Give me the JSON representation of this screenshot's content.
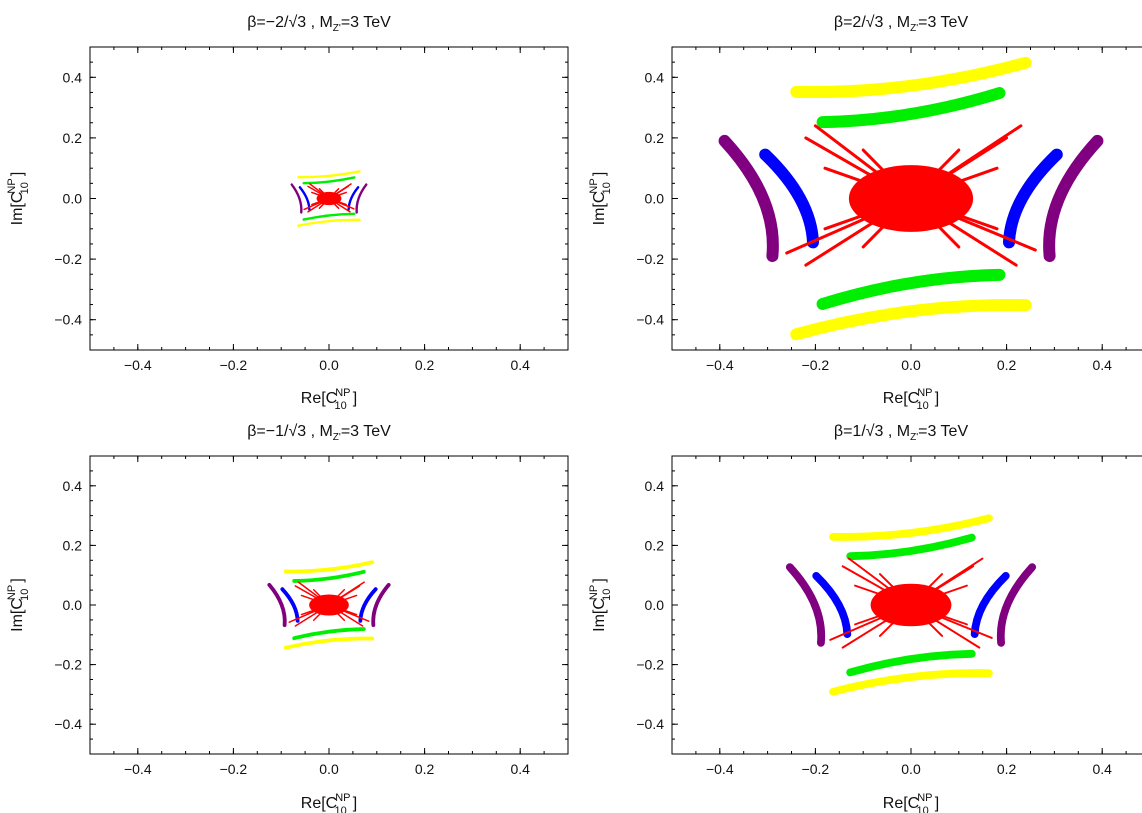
{
  "chart_data": [
    {
      "type": "scatter",
      "title": "β=−2/√3 ,  M",
      "title_sub": "Z'",
      "title_tail": "=3 TeV",
      "xlabel": "Re[C",
      "ylabel": "Im[C",
      "label_sup": "NP",
      "label_sub": "10",
      "label_close": "]",
      "xlim": [
        -0.5,
        0.5
      ],
      "ylim": [
        -0.5,
        0.5
      ],
      "x_ticks": [
        "−0.4",
        "−0.2",
        "0.0",
        "0.2",
        "0.4"
      ],
      "x_tick_values": [
        -0.4,
        -0.2,
        0.0,
        0.2,
        0.4
      ],
      "y_ticks": [
        "0.4",
        "0.2",
        "0.0",
        "−0.2",
        "−0.4"
      ],
      "y_tick_values": [
        0.4,
        0.2,
        0.0,
        -0.2,
        -0.4
      ],
      "scale": 0.2,
      "series": [
        {
          "color": "#ffff00",
          "kind": "arc-pair-vertical",
          "r": 0.4
        },
        {
          "color": "#00ee00",
          "kind": "arc-pair-vertical",
          "r": 0.3
        },
        {
          "color": "#0000ff",
          "kind": "arc-pair-horizontal",
          "r": 0.3
        },
        {
          "color": "#800080",
          "kind": "arc-pair-horizontal",
          "r": 0.4
        },
        {
          "color": "#ff0000",
          "kind": "central-star",
          "r": 0.15
        }
      ]
    },
    {
      "type": "scatter",
      "title": "β=2/√3 ,  M",
      "title_sub": "Z'",
      "title_tail": "=3 TeV",
      "xlabel": "Re[C",
      "ylabel": "Im[C",
      "label_sup": "NP",
      "label_sub": "10",
      "label_close": "]",
      "xlim": [
        -0.5,
        0.5
      ],
      "ylim": [
        -0.5,
        0.5
      ],
      "x_ticks": [
        "−0.4",
        "−0.2",
        "0.0",
        "0.2",
        "0.4"
      ],
      "x_tick_values": [
        -0.4,
        -0.2,
        0.0,
        0.2,
        0.4
      ],
      "y_ticks": [
        "0.4",
        "0.2",
        "0.0",
        "−0.2",
        "−0.4"
      ],
      "y_tick_values": [
        0.4,
        0.2,
        0.0,
        -0.2,
        -0.4
      ],
      "scale": 1.0,
      "series": [
        {
          "color": "#ffff00",
          "kind": "arc-pair-vertical",
          "r": 0.4
        },
        {
          "color": "#00ee00",
          "kind": "arc-pair-vertical",
          "r": 0.3
        },
        {
          "color": "#0000ff",
          "kind": "arc-pair-horizontal",
          "r": 0.3
        },
        {
          "color": "#800080",
          "kind": "arc-pair-horizontal",
          "r": 0.4
        },
        {
          "color": "#ff0000",
          "kind": "central-star",
          "r": 0.15
        }
      ]
    },
    {
      "type": "scatter",
      "title": "β=−1/√3 ,  M",
      "title_sub": "Z'",
      "title_tail": "=3 TeV",
      "xlabel": "Re[C",
      "ylabel": "Im[C",
      "label_sup": "NP",
      "label_sub": "10",
      "label_close": "]",
      "xlim": [
        -0.5,
        0.5
      ],
      "ylim": [
        -0.5,
        0.5
      ],
      "x_ticks": [
        "−0.4",
        "−0.2",
        "0.0",
        "0.2",
        "0.4"
      ],
      "x_tick_values": [
        -0.4,
        -0.2,
        0.0,
        0.2,
        0.4
      ],
      "y_ticks": [
        "0.4",
        "0.2",
        "0.0",
        "−0.2",
        "−0.4"
      ],
      "y_tick_values": [
        0.4,
        0.2,
        0.0,
        -0.2,
        -0.4
      ],
      "scale": 0.32,
      "series": [
        {
          "color": "#ffff00",
          "kind": "arc-pair-vertical",
          "r": 0.4
        },
        {
          "color": "#00ee00",
          "kind": "arc-pair-vertical",
          "r": 0.3
        },
        {
          "color": "#0000ff",
          "kind": "arc-pair-horizontal",
          "r": 0.3
        },
        {
          "color": "#800080",
          "kind": "arc-pair-horizontal",
          "r": 0.4
        },
        {
          "color": "#ff0000",
          "kind": "central-star",
          "r": 0.15
        }
      ]
    },
    {
      "type": "scatter",
      "title": "β=1/√3 ,  M",
      "title_sub": "Z'",
      "title_tail": "=3 TeV",
      "xlabel": "Re[C",
      "ylabel": "Im[C",
      "label_sup": "NP",
      "label_sub": "10",
      "label_close": "]",
      "xlim": [
        -0.5,
        0.5
      ],
      "ylim": [
        -0.5,
        0.5
      ],
      "x_ticks": [
        "−0.4",
        "−0.2",
        "0.0",
        "0.2",
        "0.4"
      ],
      "x_tick_values": [
        -0.4,
        -0.2,
        0.0,
        0.2,
        0.4
      ],
      "y_ticks": [
        "0.4",
        "0.2",
        "0.0",
        "−0.2",
        "−0.4"
      ],
      "y_tick_values": [
        0.4,
        0.2,
        0.0,
        -0.2,
        -0.4
      ],
      "scale": 0.65,
      "series": [
        {
          "color": "#ffff00",
          "kind": "arc-pair-vertical",
          "r": 0.4
        },
        {
          "color": "#00ee00",
          "kind": "arc-pair-vertical",
          "r": 0.3
        },
        {
          "color": "#0000ff",
          "kind": "arc-pair-horizontal",
          "r": 0.3
        },
        {
          "color": "#800080",
          "kind": "arc-pair-horizontal",
          "r": 0.4
        },
        {
          "color": "#ff0000",
          "kind": "central-star",
          "r": 0.15
        }
      ]
    }
  ]
}
